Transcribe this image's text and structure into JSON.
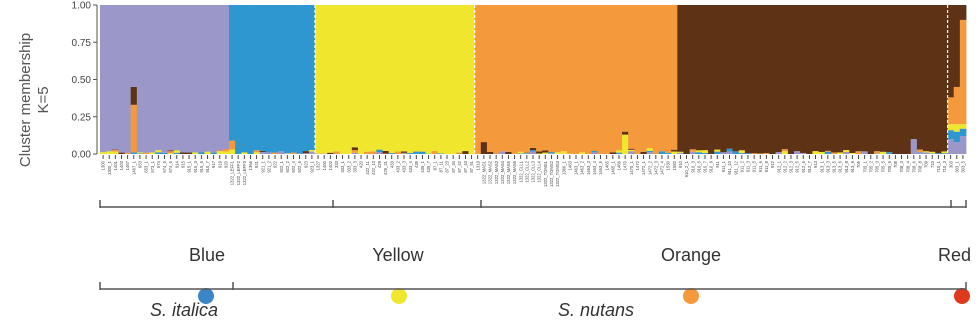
{
  "chart_data": {
    "type": "bar",
    "stacked": true,
    "ylabel": "Cluster membership",
    "ylabel_k": "K=5",
    "yticks": [
      "0.00",
      "0.25",
      "0.50",
      "0.75",
      "1.00"
    ],
    "ylim": [
      0,
      1
    ],
    "cluster_colors": {
      "blue": "#9b97c9",
      "cyan": "#2f97cf",
      "yellow": "#f0e62e",
      "orange": "#f49a3c",
      "brown": "#5e3214"
    },
    "dashed_separators": true,
    "groups": [
      {
        "name": "Blue",
        "dominant": "blue",
        "samples": [
          "1300",
          "1300_1",
          "1401",
          "1403",
          "1467",
          "1467_1",
          "653",
          "653_1",
          "673_1",
          "674",
          "674_5",
          "674_6",
          "914",
          "915",
          "915_1",
          "915_3",
          "915_5",
          "915_7",
          "917",
          "919",
          "920"
        ]
      },
      {
        "name": "Blue",
        "dominant": "cyan",
        "samples": [
          "1322_LEFF1",
          "1322_LEFF2",
          "1322_LEFF3",
          "1366",
          "921",
          "921_1",
          "921_2",
          "922",
          "922_1",
          "922_2",
          "922_4",
          "922_6",
          "923",
          "923_1"
        ]
      },
      {
        "name": "Yellow",
        "dominant": "yellow",
        "samples": [
          "1327",
          "1400",
          "1402",
          "333",
          "333_1",
          "333_2",
          "333_3",
          "420",
          "422_11",
          "422_13",
          "429",
          "429_21",
          "433",
          "433_2",
          "433_3",
          "433_4",
          "435",
          "435_1",
          "435_7",
          "87_1",
          "87_11",
          "87_23",
          "87_34",
          "87_42",
          "87_43",
          "87_51"
        ]
      },
      {
        "name": "Orange",
        "dominant": "orange",
        "samples": [
          "1319",
          "1322_MAS1",
          "1322_MAS2",
          "1322_MAS3",
          "1322_MAS4",
          "1322_MAS5",
          "1322_MAS6",
          "1322_CLL1",
          "1322_CLL2",
          "1322_CLL3",
          "1322_CLL4",
          "1322_TOMS1",
          "1322_TOMS2",
          "1322_TOMS3",
          "1366_1",
          "1463",
          "1463_1",
          "1463_2",
          "1463_3",
          "1463_4",
          "1463_5",
          "1465",
          "1465_1",
          "1466",
          "1470",
          "1470_1",
          "1472",
          "1472_1",
          "1472_2",
          "1472_3",
          "1472_4",
          "1530",
          "1582"
        ]
      },
      {
        "name": "Orange",
        "dominant": "brown",
        "samples": [
          "910",
          "910_2_1",
          "910_3",
          "910_5",
          "910_7",
          "910_9",
          "911",
          "911_1",
          "911_10",
          "911_12",
          "911_2",
          "911_3",
          "911_5",
          "911_6",
          "911_8",
          "912",
          "912_1",
          "912_2",
          "912_3",
          "912_5",
          "912_6",
          "912_7",
          "913",
          "913_1",
          "913_3",
          "913_5",
          "913_6",
          "913_8",
          "913_9",
          "705",
          "705_1",
          "705_2",
          "705_3",
          "705_5",
          "705_6",
          "708",
          "708_3",
          "708_4",
          "708_6",
          "708_8",
          "709",
          "710",
          "710_1",
          "710_3"
        ]
      },
      {
        "name": "Red",
        "dominant": "red",
        "samples": [
          "303",
          "303_1",
          "303_5"
        ]
      }
    ],
    "label_groups": [
      {
        "name": "Blue",
        "color": "#3a86c8"
      },
      {
        "name": "Yellow",
        "color": "#f0e62e"
      },
      {
        "name": "Orange",
        "color": "#f49a3c"
      },
      {
        "name": "Red",
        "color": "#e03a1e"
      }
    ],
    "species": [
      {
        "name": "S. italica"
      },
      {
        "name": "S. nutans"
      }
    ]
  }
}
